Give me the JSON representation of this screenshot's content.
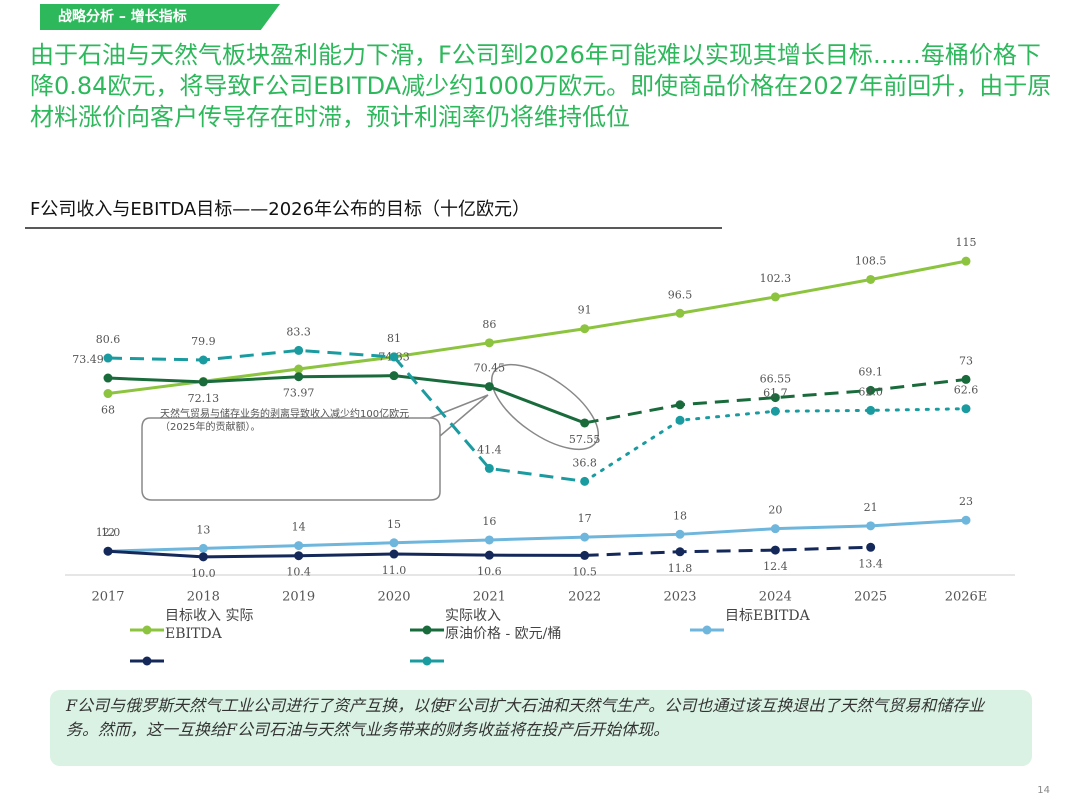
{
  "header": {
    "tag": "战略分析 – 增长指标",
    "headline": "由于石油与天然气板块盈利能力下滑，F公司到2026年可能难以实现其增长目标……每桶价格下降0.84欧元，将导致F公司EBITDA减少约1000万欧元。即使商品价格在2027年前回升，由于原材料涨价向客户传导存在时滞，预计利润率仍将维持低位"
  },
  "chart_data": {
    "type": "line",
    "title": "F公司收入与EBITDA目标——2026年公布的目标（十亿欧元）",
    "categories": [
      "2017",
      "2018",
      "2019",
      "2020",
      "2021",
      "2022",
      "2023",
      "2024",
      "2025",
      "2026E"
    ],
    "ylim": [
      0,
      125
    ],
    "series": [
      {
        "color": "#8cc43f",
        "line": "solid",
        "values": [
          68,
          72.3,
          76.7,
          81,
          86,
          91,
          96.5,
          102.3,
          108.5,
          115
        ],
        "value_labels": [
          "68",
          null,
          null,
          null,
          "86",
          "91",
          "96.5",
          "102.3",
          "108.5",
          "115"
        ]
      },
      {
        "color": "#1a6b3c",
        "line": "solid",
        "forecast_from": 5,
        "forecast_line": "dashed",
        "values": [
          73.49,
          72.13,
          73.97,
          74.33,
          70.45,
          57.55,
          64,
          66.55,
          69.1,
          73
        ],
        "value_labels": [
          "73.49",
          "72.13",
          "73.97",
          "74.33",
          "70.45",
          "57.55",
          null,
          "66.55",
          "69.1",
          "73"
        ]
      },
      {
        "color": "#6fb6dd",
        "line": "solid",
        "values": [
          12,
          13,
          14,
          15,
          16,
          17,
          18,
          20,
          21,
          23
        ]
      },
      {
        "color": "#14285a",
        "line": "solid",
        "forecast_from": 5,
        "forecast_line": "dashed",
        "values": [
          12,
          10,
          10.4,
          11,
          10.6,
          10.5,
          11.8,
          12.4,
          13.4,
          null
        ],
        "value_labels": [
          "12.0",
          "10.0",
          "10.4",
          "11.0",
          "10.6",
          "10.5",
          "11.8",
          "12.4",
          "13.4",
          null
        ]
      },
      {
        "color": "#1a9ba0",
        "line": "dashed",
        "forecast_from": 5,
        "forecast_line": "dotted",
        "values": [
          80.6,
          79.9,
          83.3,
          81,
          41.4,
          36.8,
          58.5,
          61.7,
          62,
          62.6
        ],
        "value_labels": [
          "80.6",
          "79.9",
          "83.3",
          "81",
          "41.4",
          "36.8",
          null,
          "61.7",
          "62.0",
          "62.6"
        ]
      }
    ],
    "legend": [
      "目标收入 实际",
      "EBITDA",
      "实际收入",
      "原油价格 - 欧元/桶",
      "目标EBITDA"
    ],
    "annotation": "天然气贸易与储存业务的剥离导致收入减少约100亿欧元（2025年的贡献额）。"
  },
  "footer": {
    "note": "F公司与俄罗斯天然气工业公司进行了资产互换，以使F公司扩大石油和天然气生产。公司也通过该互换退出了天然气贸易和储存业务。然而，这一互换给F公司石油与天然气业务带来的财务收益将在投产后开始体现。",
    "page": "14"
  }
}
